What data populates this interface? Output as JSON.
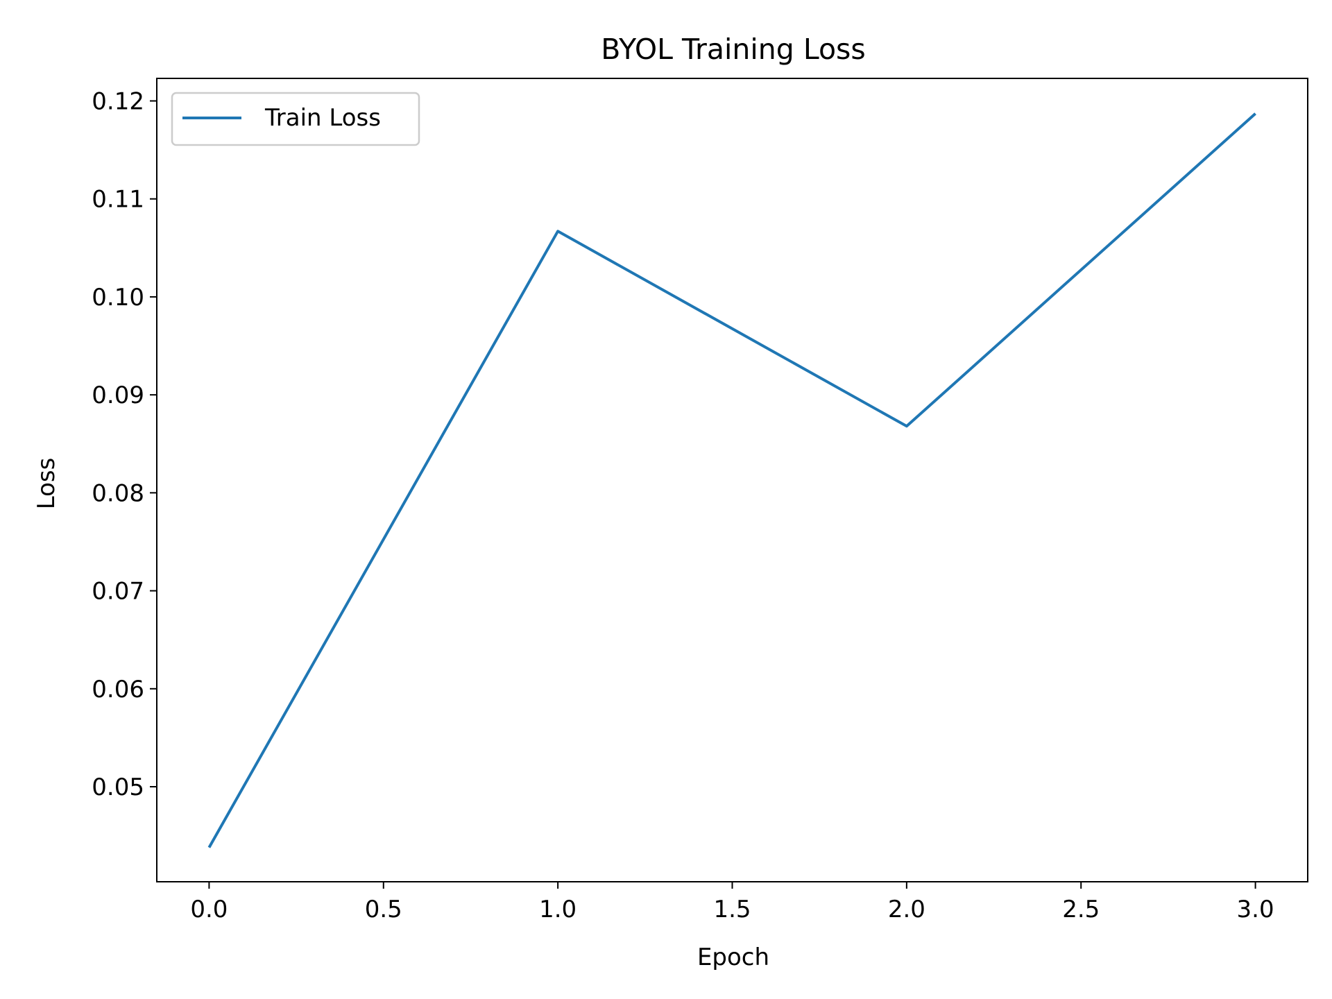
{
  "chart_data": {
    "type": "line",
    "title": "BYOL Training Loss",
    "xlabel": "Epoch",
    "ylabel": "Loss",
    "xlim": [
      -0.15,
      3.15
    ],
    "ylim": [
      0.0403,
      0.1223
    ],
    "xticks": [
      0.0,
      0.5,
      1.0,
      1.5,
      2.0,
      2.5,
      3.0
    ],
    "xtick_labels": [
      "0.0",
      "0.5",
      "1.0",
      "1.5",
      "2.0",
      "2.5",
      "3.0"
    ],
    "yticks": [
      0.05,
      0.06,
      0.07,
      0.08,
      0.09,
      0.1,
      0.11,
      0.12
    ],
    "ytick_labels": [
      "0.05",
      "0.06",
      "0.07",
      "0.08",
      "0.09",
      "0.10",
      "0.11",
      "0.12"
    ],
    "grid": false,
    "legend_position": "upper-left",
    "series": [
      {
        "name": "Train Loss",
        "color": "#1f77b4",
        "x": [
          0,
          1,
          2,
          3
        ],
        "y": [
          0.0438,
          0.1067,
          0.0868,
          0.1187
        ]
      }
    ]
  }
}
